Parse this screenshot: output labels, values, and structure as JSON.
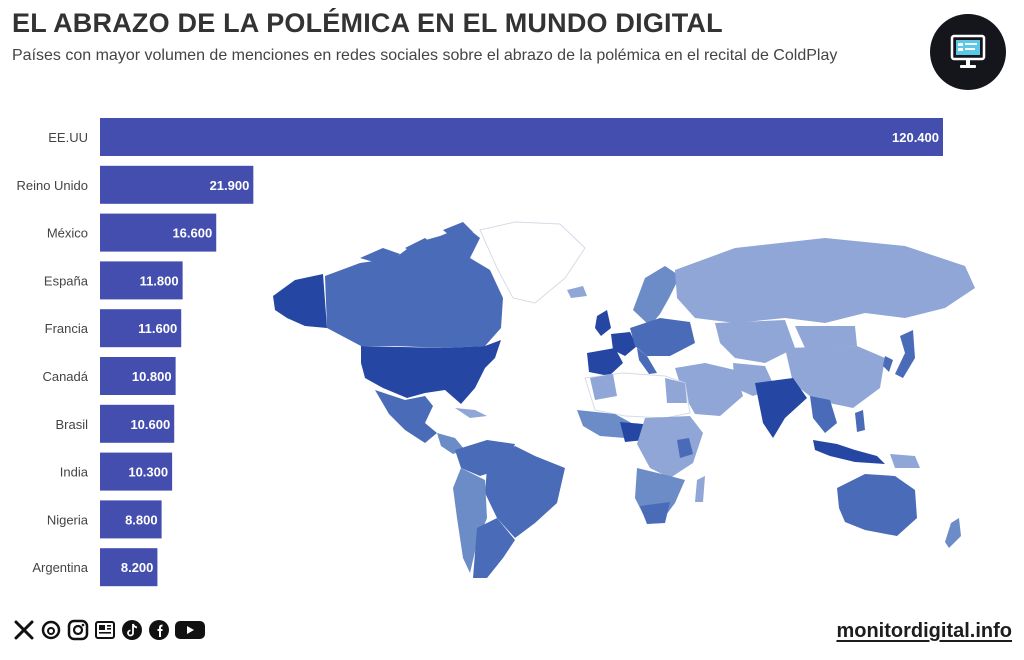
{
  "header": {
    "title": "EL ABRAZO DE LA POLÉMICA EN EL MUNDO DIGITAL",
    "subtitle": "Países con mayor volumen de menciones en redes sociales sobre el abrazo de la polémica en el recital de ColdPlay"
  },
  "brand_icon": "monitor-icon",
  "chart_data": {
    "type": "bar",
    "orientation": "horizontal",
    "categories": [
      "EE.UU",
      "Reino Unido",
      "México",
      "España",
      "Francia",
      "Canadá",
      "Brasil",
      "India",
      "Nigeria",
      "Argentina"
    ],
    "values": [
      120400,
      21900,
      16600,
      11800,
      11600,
      10800,
      10600,
      10300,
      8800,
      8200
    ],
    "value_labels": [
      "120.400",
      "21.900",
      "16.600",
      "11.800",
      "11.600",
      "10.800",
      "10.600",
      "10.300",
      "8.800",
      "8.200"
    ],
    "xlim": [
      0,
      120400
    ],
    "grid": false,
    "legend": "none",
    "bar_color": "#434eae"
  },
  "map": {
    "palette": {
      "highest": "#2547a3",
      "high": "#4a6bb8",
      "medium": "#6c8cc7",
      "low": "#8fa6d6",
      "none": "#ffffff"
    }
  },
  "footer": {
    "social_icons": [
      "x-icon",
      "threads-icon",
      "instagram-icon",
      "newspaper-icon",
      "tiktok-icon",
      "facebook-icon",
      "youtube-icon"
    ],
    "site": "monitordigital.info"
  }
}
